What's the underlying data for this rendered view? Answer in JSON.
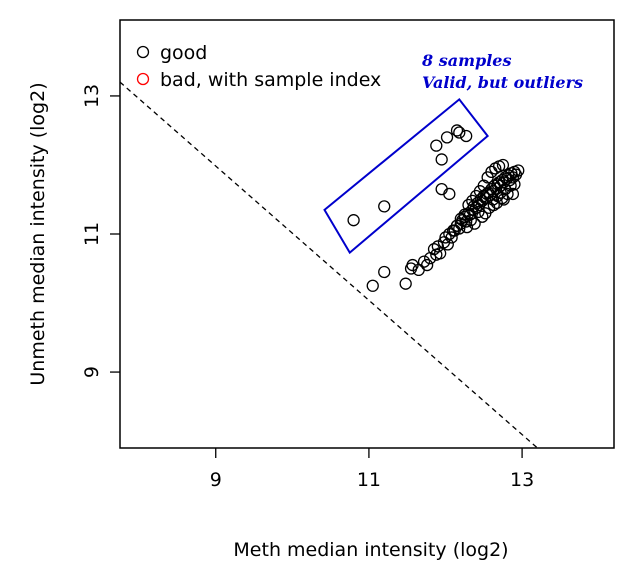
{
  "chart_data": {
    "type": "scatter",
    "xlabel": "Meth median intensity (log2)",
    "ylabel": "Unmeth median intensity (log2)",
    "xlim": [
      7.75,
      14.2
    ],
    "ylim": [
      7.9,
      14.1
    ],
    "x_ticks": [
      9,
      11,
      13
    ],
    "y_ticks": [
      9,
      11,
      13
    ],
    "x_tick_labels": [
      "9",
      "11",
      "13"
    ],
    "y_tick_labels": [
      "9",
      "11",
      "13"
    ],
    "grid": false,
    "legend_position": "top-left",
    "legend": [
      {
        "label": "good",
        "color": "#000000"
      },
      {
        "label": "bad, with sample index",
        "color": "#ff0000"
      }
    ],
    "annotations": [
      {
        "text": "8 samples",
        "color": "#0000cc"
      },
      {
        "text": "Valid, but outliers",
        "color": "#0000cc"
      }
    ],
    "reference_line": {
      "style": "dashed",
      "x": [
        7.75,
        13.2
      ],
      "y": [
        13.2,
        7.9
      ]
    },
    "highlight_box": {
      "color": "#0000cc",
      "corners": [
        [
          10.42,
          11.35
        ],
        [
          12.18,
          12.95
        ],
        [
          12.55,
          12.42
        ],
        [
          10.75,
          10.73
        ]
      ]
    },
    "series": [
      {
        "name": "good",
        "color": "#000000",
        "x": [
          10.8,
          11.2,
          11.88,
          11.95,
          12.02,
          12.15,
          12.18,
          12.27,
          11.05,
          11.2,
          11.48,
          11.55,
          11.57,
          11.65,
          11.72,
          11.76,
          11.8,
          11.85,
          11.88,
          11.9,
          11.93,
          11.98,
          12.0,
          12.03,
          12.05,
          12.08,
          12.12,
          12.15,
          12.18,
          12.2,
          12.22,
          12.25,
          12.27,
          12.3,
          12.32,
          12.35,
          12.37,
          12.4,
          12.42,
          12.44,
          12.46,
          12.48,
          12.5,
          12.52,
          12.54,
          12.56,
          12.58,
          12.6,
          12.62,
          12.64,
          12.66,
          12.68,
          12.7,
          12.72,
          12.74,
          12.76,
          12.78,
          12.8,
          12.82,
          12.84,
          12.86,
          12.88,
          12.9,
          12.92,
          12.95,
          12.55,
          12.6,
          12.65,
          12.7,
          12.75,
          12.45,
          12.5,
          12.35,
          12.4,
          12.3,
          12.62,
          12.68,
          12.72,
          12.78,
          12.85,
          12.25,
          12.2,
          12.15,
          12.1,
          12.57,
          12.63,
          12.74,
          12.81,
          12.33,
          12.43,
          11.95,
          12.05,
          12.28,
          12.48,
          12.67,
          12.88,
          12.38,
          12.52,
          12.76,
          12.9
        ],
        "y": [
          11.2,
          11.4,
          12.28,
          12.08,
          12.4,
          12.5,
          12.47,
          12.42,
          10.25,
          10.45,
          10.28,
          10.5,
          10.55,
          10.48,
          10.6,
          10.55,
          10.65,
          10.78,
          10.7,
          10.82,
          10.72,
          10.88,
          10.95,
          10.85,
          11.0,
          10.95,
          11.05,
          11.12,
          11.08,
          11.15,
          11.2,
          11.25,
          11.18,
          11.3,
          11.28,
          11.35,
          11.4,
          11.38,
          11.45,
          11.42,
          11.5,
          11.48,
          11.55,
          11.52,
          11.58,
          11.6,
          11.56,
          11.65,
          11.62,
          11.7,
          11.66,
          11.72,
          11.75,
          11.7,
          11.78,
          11.75,
          11.82,
          11.8,
          11.85,
          11.78,
          11.88,
          11.82,
          11.9,
          11.86,
          11.92,
          11.82,
          11.9,
          11.95,
          11.98,
          12.0,
          11.62,
          11.7,
          11.48,
          11.55,
          11.42,
          11.5,
          11.55,
          11.6,
          11.65,
          11.7,
          11.28,
          11.22,
          11.12,
          11.05,
          11.38,
          11.42,
          11.52,
          11.58,
          11.2,
          11.32,
          11.65,
          11.58,
          11.1,
          11.25,
          11.45,
          11.58,
          11.15,
          11.3,
          11.5,
          11.72
        ]
      },
      {
        "name": "bad, with sample index",
        "color": "#ff0000",
        "x": [],
        "y": []
      }
    ]
  }
}
